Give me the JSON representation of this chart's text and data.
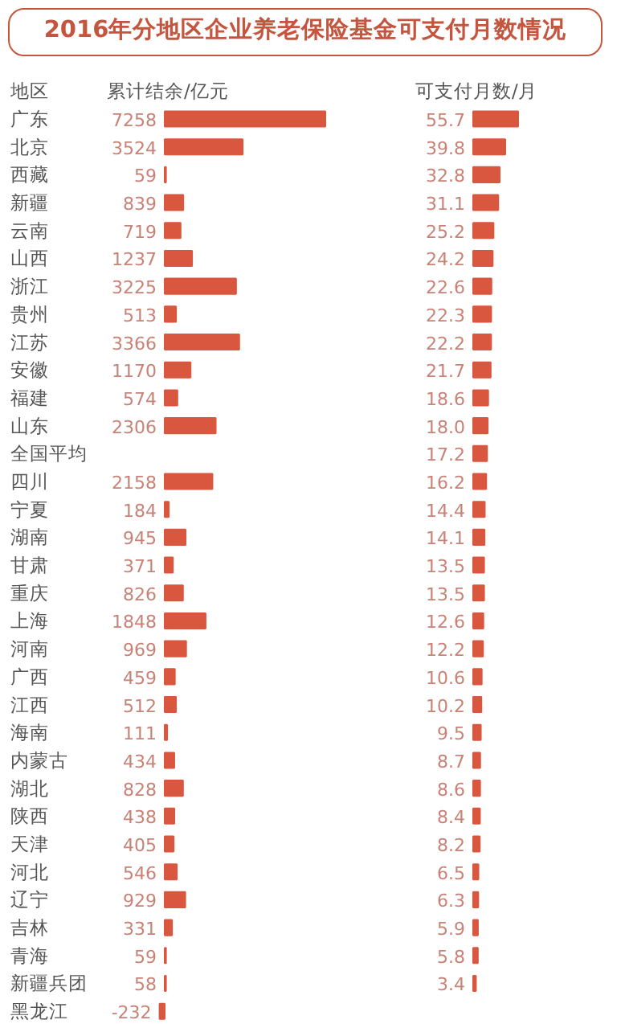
{
  "chart_data": [
    {
      "type": "bar",
      "orientation": "horizontal",
      "title": "2016年分地区企业养老保险基金可支付月数情况",
      "ylabel": "地区",
      "subtitle": "累计结余/亿元",
      "categories": [
        "广东",
        "北京",
        "西藏",
        "新疆",
        "云南",
        "山西",
        "浙江",
        "贵州",
        "江苏",
        "安徽",
        "福建",
        "山东",
        "全国平均",
        "四川",
        "宁夏",
        "湖南",
        "甘肃",
        "重庆",
        "上海",
        "河南",
        "广西",
        "江西",
        "海南",
        "内蒙古",
        "湖北",
        "陕西",
        "天津",
        "河北",
        "辽宁",
        "吉林",
        "青海",
        "新疆兵团",
        "黑龙江"
      ],
      "values": [
        7258,
        3524,
        59,
        839,
        719,
        1237,
        3225,
        513,
        3366,
        1170,
        574,
        2306,
        null,
        2158,
        184,
        945,
        371,
        826,
        1848,
        969,
        459,
        512,
        111,
        434,
        828,
        438,
        405,
        546,
        929,
        331,
        59,
        58,
        -232
      ],
      "color": "#d9573f",
      "data_labels": true
    },
    {
      "type": "bar",
      "orientation": "horizontal",
      "subtitle": "可支付月数/月",
      "categories": [
        null,
        null,
        null,
        null,
        null,
        null,
        null,
        null,
        null,
        null,
        null,
        null,
        null,
        null,
        null,
        null,
        null,
        null,
        null,
        null,
        null,
        null,
        null,
        null,
        null,
        null,
        null,
        null,
        null,
        null,
        null,
        null,
        null
      ],
      "values": [
        55.7,
        39.8,
        32.8,
        31.1,
        25.2,
        24.2,
        22.6,
        22.3,
        22.2,
        21.7,
        18.6,
        18.0,
        17.2,
        16.2,
        14.4,
        14.1,
        13.5,
        13.5,
        12.6,
        12.2,
        10.6,
        10.2,
        9.5,
        8.7,
        8.6,
        8.4,
        8.2,
        6.5,
        6.3,
        5.9,
        5.8,
        3.4,
        null
      ],
      "value_labels": [
        "55.7",
        "39.8",
        "32.8",
        "31.1",
        "25.2",
        "24.2",
        "22.6",
        "22.3",
        "22.2",
        "21.7",
        "18.6",
        "18.0",
        "17.2",
        "16.2",
        "14.4",
        "14.1",
        "13.5",
        "13.5",
        "12.6",
        "12.2",
        "10.6",
        "10.2",
        "9.5",
        "8.7",
        "8.6",
        "8.4",
        "8.2",
        "6.5",
        "6.3",
        "5.9",
        "5.8",
        "3.4",
        null
      ],
      "color": "#d9573f"
    }
  ]
}
